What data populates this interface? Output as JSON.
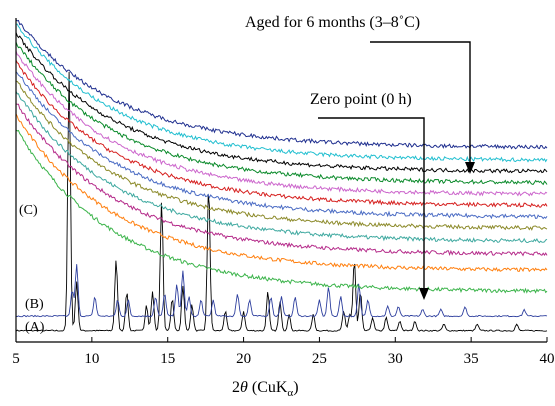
{
  "chart_data": {
    "type": "line",
    "title": "",
    "xlabel": "2θ (CuKα)",
    "xlabel_parts": {
      "prefix": "2",
      "theta": "θ",
      "paren_open": " (CuK",
      "sub": "α",
      "paren_close": ")"
    },
    "ylabel": "",
    "xlim": [
      5,
      40
    ],
    "x_ticks": [
      5,
      10,
      15,
      20,
      25,
      30,
      35,
      40
    ],
    "grid": false,
    "legend": "none",
    "annotations": {
      "aged": "Aged for 6 months (3–8˚C)",
      "zero": "Zero point (0 h)"
    },
    "curve_labels": {
      "A": "(A)",
      "B": "(B)",
      "C": "(C)"
    },
    "series": [
      {
        "label": "(A)",
        "color": "#000000",
        "kind": "pattern",
        "baseline": 0.035,
        "peaks": [
          [
            8.5,
            0.8
          ],
          [
            9.0,
            0.15
          ],
          [
            11.6,
            0.22
          ],
          [
            12.3,
            0.12
          ],
          [
            13.6,
            0.08
          ],
          [
            14.0,
            0.12
          ],
          [
            14.6,
            0.4
          ],
          [
            15.3,
            0.1
          ],
          [
            16.0,
            0.14
          ],
          [
            16.6,
            0.08
          ],
          [
            17.7,
            0.45
          ],
          [
            18.8,
            0.06
          ],
          [
            20.0,
            0.06
          ],
          [
            21.6,
            0.12
          ],
          [
            22.4,
            0.09
          ],
          [
            23.0,
            0.05
          ],
          [
            24.6,
            0.05
          ],
          [
            26.6,
            0.06
          ],
          [
            27.0,
            0.05
          ],
          [
            27.3,
            0.22
          ],
          [
            27.7,
            0.12
          ],
          [
            28.5,
            0.04
          ],
          [
            29.4,
            0.04
          ],
          [
            30.3,
            0.03
          ],
          [
            31.3,
            0.03
          ],
          [
            33.2,
            0.02
          ],
          [
            35.4,
            0.02
          ],
          [
            38.0,
            0.02
          ]
        ]
      },
      {
        "label": "(B)",
        "color": "#2e3f9e",
        "kind": "pattern",
        "baseline": 0.08,
        "peaks": [
          [
            8.7,
            0.08
          ],
          [
            9.0,
            0.16
          ],
          [
            10.2,
            0.06
          ],
          [
            11.7,
            0.05
          ],
          [
            12.4,
            0.05
          ],
          [
            14.2,
            0.06
          ],
          [
            14.8,
            0.07
          ],
          [
            15.6,
            0.1
          ],
          [
            16.0,
            0.14
          ],
          [
            16.4,
            0.06
          ],
          [
            17.2,
            0.05
          ],
          [
            18.0,
            0.05
          ],
          [
            19.6,
            0.07
          ],
          [
            20.4,
            0.05
          ],
          [
            21.8,
            0.06
          ],
          [
            22.5,
            0.06
          ],
          [
            23.4,
            0.06
          ],
          [
            25.0,
            0.05
          ],
          [
            25.6,
            0.09
          ],
          [
            26.4,
            0.06
          ],
          [
            27.6,
            0.1
          ],
          [
            28.2,
            0.05
          ],
          [
            29.5,
            0.03
          ],
          [
            30.2,
            0.03
          ],
          [
            31.8,
            0.02
          ],
          [
            33.0,
            0.02
          ],
          [
            34.6,
            0.03
          ],
          [
            38.5,
            0.02
          ]
        ]
      },
      {
        "label": "(C)",
        "color": "#3cb44b",
        "kind": "amorphous",
        "start": 0.66,
        "end": 0.155
      },
      {
        "label": "",
        "color": "#ff7f0e",
        "kind": "amorphous",
        "start": 0.7,
        "end": 0.22
      },
      {
        "label": "",
        "color": "#b52b8a",
        "kind": "amorphous",
        "start": 0.74,
        "end": 0.27
      },
      {
        "label": "",
        "color": "#3fa9a0",
        "kind": "amorphous",
        "start": 0.775,
        "end": 0.31
      },
      {
        "label": "",
        "color": "#8c8a2a",
        "kind": "amorphous",
        "start": 0.81,
        "end": 0.35
      },
      {
        "label": "",
        "color": "#4b6cc4",
        "kind": "amorphous",
        "start": 0.84,
        "end": 0.385
      },
      {
        "label": "",
        "color": "#d6201f",
        "kind": "amorphous",
        "start": 0.865,
        "end": 0.42
      },
      {
        "label": "",
        "color": "#cc66cc",
        "kind": "amorphous",
        "start": 0.895,
        "end": 0.455
      },
      {
        "label": "",
        "color": "#0a8a2a",
        "kind": "amorphous",
        "start": 0.925,
        "end": 0.49
      },
      {
        "label": "",
        "color": "#000000",
        "kind": "amorphous",
        "start": 0.955,
        "end": 0.525
      },
      {
        "label": "",
        "color": "#22bfd0",
        "kind": "amorphous",
        "start": 0.985,
        "end": 0.56
      },
      {
        "label": "",
        "color": "#1f2f8f",
        "kind": "amorphous",
        "start": 1.0,
        "end": 0.6
      }
    ]
  }
}
